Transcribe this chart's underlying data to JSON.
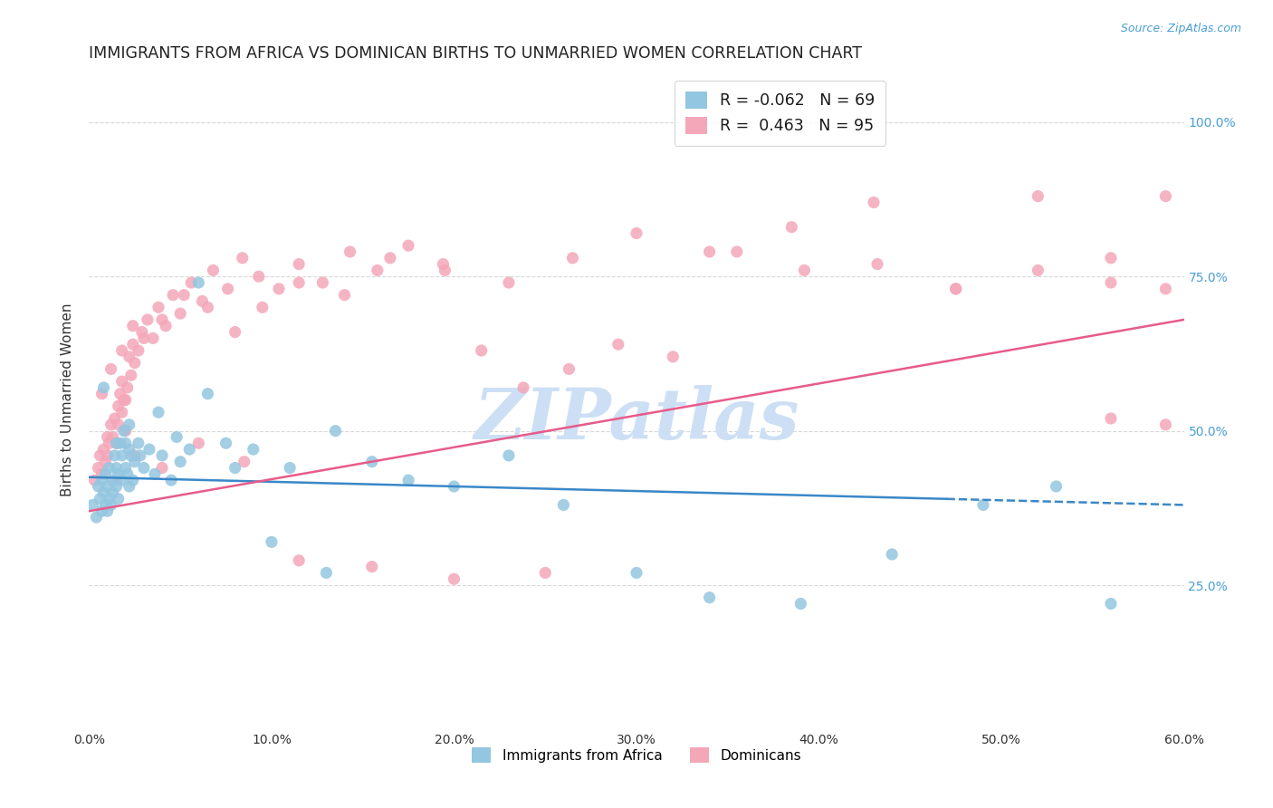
{
  "title": "IMMIGRANTS FROM AFRICA VS DOMINICAN BIRTHS TO UNMARRIED WOMEN CORRELATION CHART",
  "source_text": "Source: ZipAtlas.com",
  "ylabel": "Births to Unmarried Women",
  "xlim": [
    0.0,
    0.6
  ],
  "ylim": [
    0.02,
    1.08
  ],
  "xtick_vals": [
    0.0,
    0.1,
    0.2,
    0.3,
    0.4,
    0.5,
    0.6
  ],
  "ytick_vals": [
    0.25,
    0.5,
    0.75,
    1.0
  ],
  "grid_color": "#d8d8d8",
  "background_color": "#ffffff",
  "watermark_text": "ZIPatlas",
  "watermark_color": "#ccdff5",
  "legend_label1": "Immigrants from Africa",
  "legend_label2": "Dominicans",
  "color_blue": "#93c6e0",
  "color_pink": "#f4a7b9",
  "trend_blue": "#3a88c8",
  "trend_pink": "#e85b8a",
  "title_fontsize": 12.5,
  "axis_label_fontsize": 11,
  "tick_fontsize": 10,
  "right_tick_color": "#4a9fd4",
  "blue_x": [
    0.002,
    0.004,
    0.005,
    0.006,
    0.007,
    0.007,
    0.008,
    0.009,
    0.009,
    0.01,
    0.01,
    0.011,
    0.011,
    0.012,
    0.013,
    0.013,
    0.014,
    0.015,
    0.015,
    0.016,
    0.016,
    0.017,
    0.018,
    0.018,
    0.019,
    0.02,
    0.02,
    0.021,
    0.022,
    0.022,
    0.023,
    0.024,
    0.025,
    0.027,
    0.03,
    0.033,
    0.036,
    0.04,
    0.045,
    0.05,
    0.055,
    0.065,
    0.075,
    0.09,
    0.11,
    0.135,
    0.155,
    0.175,
    0.2,
    0.23,
    0.26,
    0.3,
    0.34,
    0.39,
    0.44,
    0.49,
    0.53,
    0.56,
    0.008,
    0.015,
    0.022,
    0.028,
    0.038,
    0.048,
    0.06,
    0.08,
    0.1,
    0.13
  ],
  "blue_y": [
    0.38,
    0.36,
    0.41,
    0.39,
    0.37,
    0.42,
    0.4,
    0.38,
    0.43,
    0.37,
    0.41,
    0.39,
    0.44,
    0.38,
    0.42,
    0.4,
    0.46,
    0.41,
    0.44,
    0.39,
    0.43,
    0.48,
    0.42,
    0.46,
    0.5,
    0.44,
    0.48,
    0.43,
    0.47,
    0.41,
    0.46,
    0.42,
    0.45,
    0.48,
    0.44,
    0.47,
    0.43,
    0.46,
    0.42,
    0.45,
    0.47,
    0.56,
    0.48,
    0.47,
    0.44,
    0.5,
    0.45,
    0.42,
    0.41,
    0.46,
    0.38,
    0.27,
    0.23,
    0.22,
    0.3,
    0.38,
    0.41,
    0.22,
    0.57,
    0.48,
    0.51,
    0.46,
    0.53,
    0.49,
    0.74,
    0.44,
    0.32,
    0.27
  ],
  "pink_x": [
    0.003,
    0.005,
    0.006,
    0.007,
    0.008,
    0.009,
    0.01,
    0.01,
    0.011,
    0.012,
    0.013,
    0.014,
    0.015,
    0.016,
    0.016,
    0.017,
    0.018,
    0.018,
    0.019,
    0.02,
    0.02,
    0.021,
    0.022,
    0.023,
    0.024,
    0.025,
    0.027,
    0.029,
    0.032,
    0.035,
    0.038,
    0.042,
    0.046,
    0.05,
    0.056,
    0.062,
    0.068,
    0.076,
    0.084,
    0.093,
    0.104,
    0.115,
    0.128,
    0.143,
    0.158,
    0.175,
    0.194,
    0.215,
    0.238,
    0.263,
    0.29,
    0.32,
    0.355,
    0.392,
    0.432,
    0.475,
    0.52,
    0.56,
    0.59,
    0.007,
    0.012,
    0.018,
    0.024,
    0.03,
    0.04,
    0.052,
    0.065,
    0.08,
    0.095,
    0.115,
    0.14,
    0.165,
    0.195,
    0.23,
    0.265,
    0.3,
    0.34,
    0.385,
    0.43,
    0.475,
    0.52,
    0.56,
    0.59,
    0.59,
    0.56,
    0.015,
    0.025,
    0.04,
    0.06,
    0.085,
    0.115,
    0.155,
    0.2,
    0.25
  ],
  "pink_y": [
    0.42,
    0.44,
    0.46,
    0.43,
    0.47,
    0.45,
    0.49,
    0.46,
    0.48,
    0.51,
    0.49,
    0.52,
    0.48,
    0.54,
    0.51,
    0.56,
    0.53,
    0.58,
    0.55,
    0.5,
    0.55,
    0.57,
    0.62,
    0.59,
    0.64,
    0.61,
    0.63,
    0.66,
    0.68,
    0.65,
    0.7,
    0.67,
    0.72,
    0.69,
    0.74,
    0.71,
    0.76,
    0.73,
    0.78,
    0.75,
    0.73,
    0.77,
    0.74,
    0.79,
    0.76,
    0.8,
    0.77,
    0.63,
    0.57,
    0.6,
    0.64,
    0.62,
    0.79,
    0.76,
    0.77,
    0.73,
    0.76,
    0.52,
    0.51,
    0.56,
    0.6,
    0.63,
    0.67,
    0.65,
    0.68,
    0.72,
    0.7,
    0.66,
    0.7,
    0.74,
    0.72,
    0.78,
    0.76,
    0.74,
    0.78,
    0.82,
    0.79,
    0.83,
    0.87,
    0.73,
    0.88,
    0.74,
    0.73,
    0.88,
    0.78,
    0.42,
    0.46,
    0.44,
    0.48,
    0.45,
    0.29,
    0.28,
    0.26,
    0.27
  ],
  "blue_trend_x0": 0.0,
  "blue_trend_x1": 0.6,
  "blue_trend_y0": 0.425,
  "blue_trend_y1": 0.38,
  "blue_trend_solid_end": 0.47,
  "pink_trend_x0": 0.0,
  "pink_trend_x1": 0.6,
  "pink_trend_y0": 0.37,
  "pink_trend_y1": 0.68
}
